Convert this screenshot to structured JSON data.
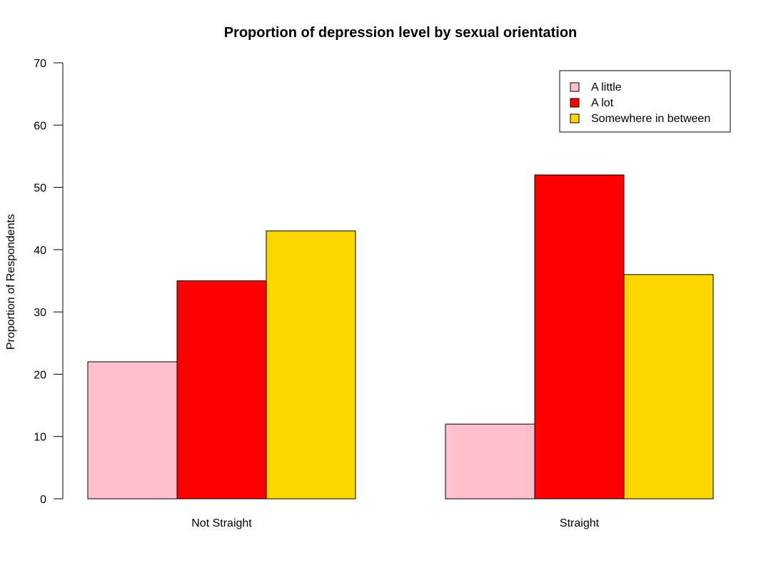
{
  "chart_data": {
    "type": "bar",
    "title": "Proportion of depression level by sexual orientation",
    "xlabel": "",
    "ylabel": "Proportion of Respondents",
    "categories": [
      "Not Straight",
      "Straight"
    ],
    "series": [
      {
        "name": "A little",
        "values": [
          22,
          12
        ],
        "color": "#FFC0CB"
      },
      {
        "name": "A lot",
        "values": [
          35,
          52
        ],
        "color": "#FF0000"
      },
      {
        "name": "Somewhere in between",
        "values": [
          43,
          36
        ],
        "color": "#FFD700"
      }
    ],
    "ylim": [
      0,
      70
    ],
    "yticks": [
      0,
      10,
      20,
      30,
      40,
      50,
      60,
      70
    ],
    "grid": false,
    "legend_position": "top-right",
    "bar_border_color": "#000000"
  }
}
